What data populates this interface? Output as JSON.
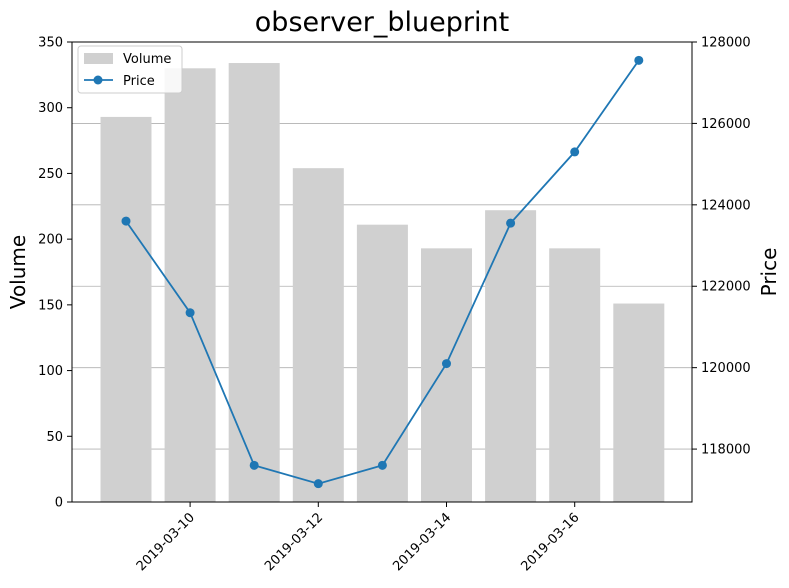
{
  "chart_data": {
    "type": "bar+line",
    "title": "observer_blueprint",
    "ylabel_left": "Volume",
    "ylabel_right": "Price",
    "dates": [
      "2019-03-09",
      "2019-03-10",
      "2019-03-11",
      "2019-03-12",
      "2019-03-13",
      "2019-03-14",
      "2019-03-15",
      "2019-03-16",
      "2019-03-17"
    ],
    "x_ticks": [
      "2019-03-10",
      "2019-03-12",
      "2019-03-14",
      "2019-03-16"
    ],
    "series": [
      {
        "name": "Volume",
        "kind": "bar",
        "axis": "left",
        "color": "#d0d0d0",
        "values": [
          293,
          330,
          334,
          254,
          211,
          193,
          222,
          193,
          151
        ]
      },
      {
        "name": "Price",
        "kind": "line",
        "axis": "right",
        "color": "#1f77b4",
        "values": [
          123600,
          121350,
          117600,
          117150,
          117600,
          120100,
          123550,
          125300,
          127550
        ]
      }
    ],
    "ylim_left": [
      0,
      350
    ],
    "ylim_right": [
      116700,
      128000
    ],
    "yticks_left": [
      0,
      50,
      100,
      150,
      200,
      250,
      300,
      350
    ],
    "yticks_right": [
      118000,
      120000,
      122000,
      124000,
      126000,
      128000
    ],
    "grid": "horizontal, on right axis ticks",
    "legend_position": "top-left"
  }
}
